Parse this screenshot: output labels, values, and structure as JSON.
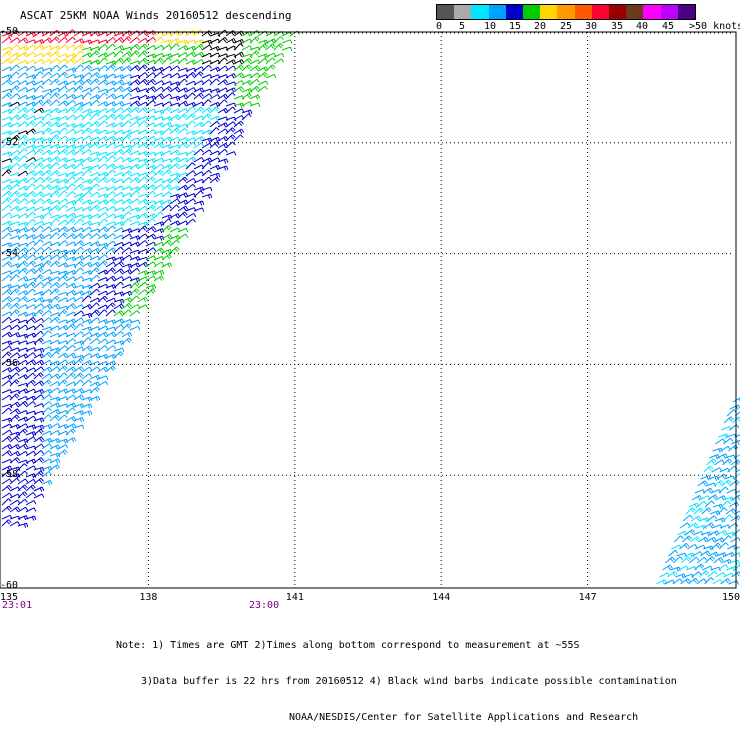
{
  "title": "ASCAT 25KM NOAA Winds 20160512 descending",
  "legend": {
    "labels": [
      "0",
      "5",
      "10",
      "15",
      "20",
      "25",
      "30",
      "35",
      "40",
      "45",
      ">50 knots"
    ],
    "colors": [
      "#555555",
      "#aaaaaa",
      "#00e5ff",
      "#00a0ff",
      "#0000cd",
      "#00cc00",
      "#ffd700",
      "#ff9900",
      "#ff5a00",
      "#ff0033",
      "#990000",
      "#6b3a1a",
      "#ff00ff",
      "#c000ff",
      "#4b0082"
    ]
  },
  "map": {
    "lon_ticks": [
      "135",
      "138",
      "141",
      "144",
      "147",
      "150"
    ],
    "lat_ticks": [
      "-50",
      "-52",
      "-54",
      "-56",
      "-58",
      "-60"
    ],
    "lon_range": [
      135,
      150
    ],
    "lat_range": [
      -50,
      -60
    ]
  },
  "times": [
    "23:01",
    "23:00"
  ],
  "notes": [
    "Note: 1) Times are GMT 2)Times along bottom correspond to measurement at ~55S",
    "3)Data buffer is 22 hrs from 20160512 4) Black wind barbs indicate possible contamination",
    "NOAA/NESDIS/Center for Satellite Applications and Research"
  ],
  "swaths": [
    {
      "name": "western-swath",
      "speed_range_knots": [
        5,
        30
      ]
    },
    {
      "name": "eastern-swath",
      "speed_range_knots": [
        5,
        10
      ]
    }
  ]
}
